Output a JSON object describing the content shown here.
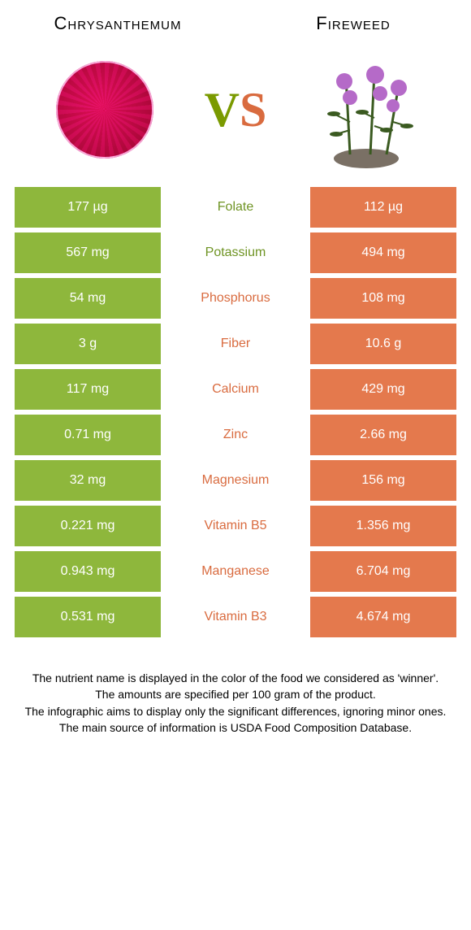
{
  "header": {
    "left_title": "Chrysanthemum",
    "right_title": "Fireweed",
    "vs_v": "V",
    "vs_s": "S"
  },
  "colors": {
    "left_cell": "#8eb73c",
    "right_cell": "#e4794d",
    "nutrient_left_winner": "#6f9424",
    "nutrient_right_winner": "#d96b3f",
    "background": "#ffffff"
  },
  "rows": [
    {
      "left": "177 µg",
      "nutrient": "Folate",
      "right": "112 µg",
      "winner": "left"
    },
    {
      "left": "567 mg",
      "nutrient": "Potassium",
      "right": "494 mg",
      "winner": "left"
    },
    {
      "left": "54 mg",
      "nutrient": "Phosphorus",
      "right": "108 mg",
      "winner": "right"
    },
    {
      "left": "3 g",
      "nutrient": "Fiber",
      "right": "10.6 g",
      "winner": "right"
    },
    {
      "left": "117 mg",
      "nutrient": "Calcium",
      "right": "429 mg",
      "winner": "right"
    },
    {
      "left": "0.71 mg",
      "nutrient": "Zinc",
      "right": "2.66 mg",
      "winner": "right"
    },
    {
      "left": "32 mg",
      "nutrient": "Magnesium",
      "right": "156 mg",
      "winner": "right"
    },
    {
      "left": "0.221 mg",
      "nutrient": "Vitamin B5",
      "right": "1.356 mg",
      "winner": "right"
    },
    {
      "left": "0.943 mg",
      "nutrient": "Manganese",
      "right": "6.704 mg",
      "winner": "right"
    },
    {
      "left": "0.531 mg",
      "nutrient": "Vitamin B3",
      "right": "4.674 mg",
      "winner": "right"
    }
  ],
  "footnotes": [
    "The nutrient name is displayed in the color of the food we considered as 'winner'.",
    "The amounts are specified per 100 gram of the product.",
    "The infographic aims to display only the significant differences, ignoring minor ones.",
    "The main source of information is USDA Food Composition Database."
  ]
}
